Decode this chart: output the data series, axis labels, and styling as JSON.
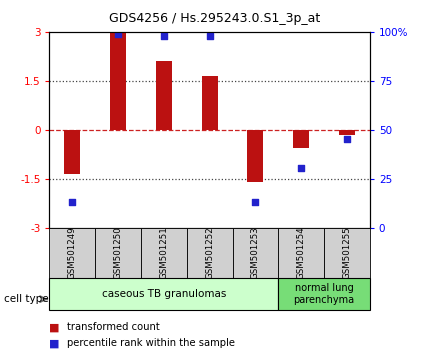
{
  "title": "GDS4256 / Hs.295243.0.S1_3p_at",
  "samples": [
    "GSM501249",
    "GSM501250",
    "GSM501251",
    "GSM501252",
    "GSM501253",
    "GSM501254",
    "GSM501255"
  ],
  "red_bars": [
    -1.35,
    2.95,
    2.1,
    1.65,
    -1.6,
    -0.55,
    -0.15
  ],
  "blue_squares_y": [
    -2.2,
    2.93,
    2.88,
    2.88,
    -2.2,
    -1.15,
    -0.28
  ],
  "ylim": [
    -3,
    3
  ],
  "yticks_left": [
    -3,
    -1.5,
    0,
    1.5,
    3
  ],
  "right_yticks_y": [
    -3,
    -1.5,
    0,
    1.5,
    3
  ],
  "right_yticks_labels": [
    "0",
    "25",
    "50",
    "75",
    "100%"
  ],
  "bar_color": "#bb1111",
  "blue_color": "#2222cc",
  "red_line_color": "#cc2222",
  "dot_color": "#444444",
  "group1_label": "caseous TB granulomas",
  "group1_color": "#ccffcc",
  "group1_samples": 5,
  "group2_label": "normal lung\nparenchyma",
  "group2_color": "#77dd77",
  "group2_samples": 2,
  "legend_items": [
    {
      "color": "#bb1111",
      "label": "transformed count"
    },
    {
      "color": "#2222cc",
      "label": "percentile rank within the sample"
    }
  ],
  "cell_type_label": "cell type",
  "bar_width": 0.35
}
